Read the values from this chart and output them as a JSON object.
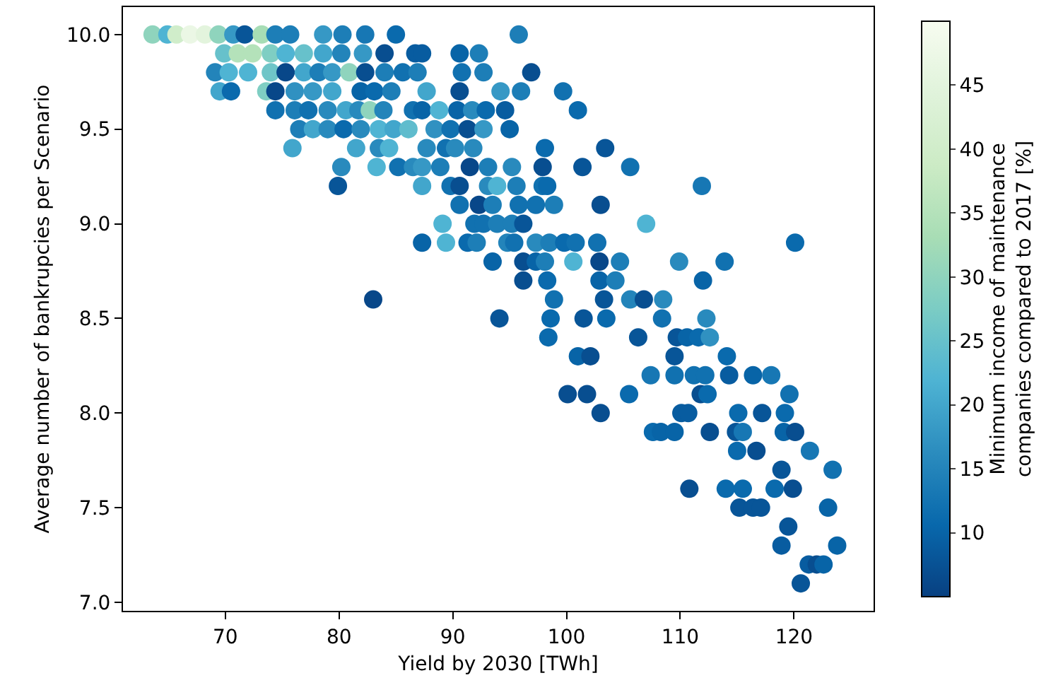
{
  "chart_data": {
    "type": "scatter",
    "xlabel": "Yield by 2030 [TWh]",
    "ylabel": "Average number of bankrupcies per Scenario",
    "clabel": "Minimum income of maintenance\ncompanies compared to 2017 [%]",
    "marker": "circle",
    "grid": false,
    "xlim": [
      61,
      127
    ],
    "xticks": [
      70,
      80,
      90,
      100,
      110,
      120
    ],
    "ylim": [
      6.955,
      10.145
    ],
    "yticks": [
      {
        "value": 7,
        "label": "7.0"
      },
      7.5,
      {
        "value": 8,
        "label": "8.0"
      },
      8.5,
      {
        "value": 9,
        "label": "9.0"
      },
      9.5,
      {
        "value": 10,
        "label": "10.0"
      }
    ],
    "clim": [
      5,
      50
    ],
    "cticks": [
      10,
      15,
      20,
      25,
      30,
      35,
      40,
      45
    ],
    "series": [
      {
        "x": [
          63.6,
          64.9,
          65.7,
          66.9,
          68.2,
          69.4,
          70.7,
          71.7,
          73.2,
          74.4,
          75.7,
          78.6,
          80.3,
          82.3,
          85.0,
          95.8,
          69.9,
          71.1,
          72.4,
          74.0,
          75.3,
          76.9,
          78.6,
          80.2,
          82.1,
          84.0,
          86.7,
          87.3,
          90.6,
          92.3,
          69.1,
          70.3,
          72.0,
          74.0,
          75.3,
          76.9,
          78.2,
          79.4,
          80.9,
          82.3,
          84.0,
          85.6,
          86.9,
          90.8,
          92.7,
          96.9,
          69.5,
          70.5,
          73.6,
          74.4,
          76.1,
          77.7,
          79.4,
          81.9,
          83.1,
          84.6,
          87.7,
          90.6,
          94.2,
          96.0,
          99.7,
          74.4,
          76.1,
          77.3,
          79.0,
          80.6,
          81.7,
          82.7,
          83.9,
          86.5,
          87.3,
          88.8,
          90.4,
          91.7,
          92.9,
          94.6,
          101.0,
          76.5,
          77.7,
          79.0,
          80.4,
          81.9,
          83.5,
          84.8,
          86.1,
          88.4,
          89.8,
          91.3,
          92.7,
          95.0,
          75.9,
          81.5,
          83.5,
          84.4,
          87.7,
          89.4,
          90.2,
          91.8,
          98.1,
          103.4,
          80.2,
          83.3,
          85.2,
          86.5,
          87.3,
          88.9,
          91.5,
          93.1,
          95.2,
          97.9,
          101.4,
          105.6,
          79.9,
          87.3,
          89.8,
          90.6,
          93.1,
          93.9,
          95.6,
          97.9,
          98.3,
          111.9,
          90.6,
          92.3,
          93.5,
          95.8,
          97.3,
          98.9,
          103.0,
          89.1,
          91.9,
          92.7,
          93.9,
          95.2,
          96.2,
          107.0,
          87.3,
          89.4,
          91.3,
          92.1,
          94.8,
          95.4,
          97.3,
          98.5,
          99.8,
          100.8,
          102.7,
          120.1,
          93.5,
          96.2,
          97.3,
          98.1,
          100.6,
          102.9,
          104.7,
          109.9,
          113.9,
          96.2,
          98.3,
          102.9,
          104.3,
          112.0,
          83.0,
          98.9,
          103.3,
          105.6,
          106.8,
          108.5,
          94.1,
          98.6,
          101.5,
          103.5,
          108.4,
          112.3,
          98.4,
          106.3,
          109.7,
          110.6,
          111.6,
          112.6,
          101.0,
          102.1,
          109.5,
          114.1,
          107.4,
          109.5,
          111.2,
          112.2,
          114.3,
          116.4,
          118.0,
          100.1,
          101.8,
          105.5,
          111.8,
          112.4,
          119.6,
          103.0,
          110.1,
          110.7,
          115.1,
          117.2,
          119.2,
          107.6,
          108.3,
          109.5,
          112.6,
          114.9,
          115.5,
          119.1,
          120.1,
          115.0,
          116.7,
          121.4,
          118.9,
          123.4,
          110.8,
          114.0,
          115.5,
          118.3,
          119.9,
          115.2,
          116.4,
          117.1,
          123.0,
          119.5,
          118.9,
          123.8,
          121.3,
          122.0,
          122.6,
          120.6
        ],
        "values": [
          10,
          10,
          10,
          10,
          10,
          10,
          10,
          10,
          10,
          10,
          10,
          10,
          10,
          10,
          10,
          10,
          9.9,
          9.9,
          9.9,
          9.9,
          9.9,
          9.9,
          9.9,
          9.9,
          9.9,
          9.9,
          9.9,
          9.9,
          9.9,
          9.9,
          9.8,
          9.8,
          9.8,
          9.8,
          9.8,
          9.8,
          9.8,
          9.8,
          9.8,
          9.8,
          9.8,
          9.8,
          9.8,
          9.8,
          9.8,
          9.8,
          9.7,
          9.7,
          9.7,
          9.7,
          9.7,
          9.7,
          9.7,
          9.7,
          9.7,
          9.7,
          9.7,
          9.7,
          9.7,
          9.7,
          9.7,
          9.6,
          9.6,
          9.6,
          9.6,
          9.6,
          9.6,
          9.6,
          9.6,
          9.6,
          9.6,
          9.6,
          9.6,
          9.6,
          9.6,
          9.6,
          9.6,
          9.5,
          9.5,
          9.5,
          9.5,
          9.5,
          9.5,
          9.5,
          9.5,
          9.5,
          9.5,
          9.5,
          9.5,
          9.5,
          9.4,
          9.4,
          9.4,
          9.4,
          9.4,
          9.4,
          9.4,
          9.4,
          9.4,
          9.4,
          9.3,
          9.3,
          9.3,
          9.3,
          9.3,
          9.3,
          9.3,
          9.3,
          9.3,
          9.3,
          9.3,
          9.3,
          9.2,
          9.2,
          9.2,
          9.2,
          9.2,
          9.2,
          9.2,
          9.2,
          9.2,
          9.2,
          9.1,
          9.1,
          9.1,
          9.1,
          9.1,
          9.1,
          9.1,
          9.0,
          9.0,
          9.0,
          9.0,
          9.0,
          9.0,
          9.0,
          8.9,
          8.9,
          8.9,
          8.9,
          8.9,
          8.9,
          8.9,
          8.9,
          8.9,
          8.9,
          8.9,
          8.9,
          8.8,
          8.8,
          8.8,
          8.8,
          8.8,
          8.8,
          8.8,
          8.8,
          8.8,
          8.7,
          8.7,
          8.7,
          8.7,
          8.7,
          8.6,
          8.6,
          8.6,
          8.6,
          8.6,
          8.6,
          8.5,
          8.5,
          8.5,
          8.5,
          8.5,
          8.5,
          8.4,
          8.4,
          8.4,
          8.4,
          8.4,
          8.4,
          8.3,
          8.3,
          8.3,
          8.3,
          8.2,
          8.2,
          8.2,
          8.2,
          8.2,
          8.2,
          8.2,
          8.1,
          8.1,
          8.1,
          8.1,
          8.1,
          8.1,
          8.0,
          8.0,
          8.0,
          8.0,
          8.0,
          8.0,
          7.9,
          7.9,
          7.9,
          7.9,
          7.9,
          7.9,
          7.9,
          7.9,
          7.8,
          7.8,
          7.8,
          7.7,
          7.7,
          7.6,
          7.6,
          7.6,
          7.6,
          7.6,
          7.5,
          7.5,
          7.5,
          7.5,
          7.4,
          7.3,
          7.3,
          7.2,
          7.2,
          7.2,
          7.1
        ],
        "cvalues": [
          30,
          22,
          40,
          47,
          45,
          30,
          18,
          8,
          33,
          14,
          14,
          18,
          14,
          13,
          11,
          14,
          25,
          35,
          35,
          28,
          22,
          25,
          20,
          15,
          18,
          7,
          9,
          9,
          10,
          14,
          15,
          22,
          22,
          26,
          6,
          20,
          14,
          18,
          30,
          7,
          14,
          12,
          14,
          12,
          14,
          7,
          20,
          11,
          28,
          6,
          17,
          18,
          20,
          10,
          11,
          14,
          20,
          7,
          18,
          14,
          12,
          12,
          14,
          12,
          16,
          20,
          16,
          30,
          15,
          12,
          10,
          22,
          10,
          16,
          11,
          9,
          11,
          14,
          20,
          16,
          11,
          16,
          22,
          20,
          24,
          17,
          12,
          7,
          18,
          10,
          20,
          20,
          16,
          22,
          16,
          12,
          16,
          16,
          11,
          8,
          16,
          22,
          12,
          16,
          18,
          14,
          6,
          14,
          16,
          7,
          8,
          12,
          8,
          20,
          12,
          7,
          16,
          22,
          14,
          12,
          11,
          13,
          12,
          6,
          14,
          12,
          12,
          14,
          7,
          22,
          12,
          12,
          14,
          14,
          8,
          22,
          10,
          22,
          11,
          14,
          15,
          12,
          16,
          14,
          11,
          12,
          12,
          11,
          10,
          7,
          10,
          14,
          22,
          6,
          14,
          16,
          12,
          7,
          11,
          10,
          14,
          10,
          6,
          12,
          8,
          15,
          7,
          16,
          8,
          11,
          8,
          11,
          12,
          16,
          11,
          8,
          8,
          10,
          11,
          17,
          10,
          7,
          8,
          11,
          13,
          12,
          12,
          12,
          9,
          10,
          13,
          7,
          7,
          11,
          7,
          11,
          12,
          7,
          9,
          9,
          11,
          8,
          11,
          11,
          10,
          10,
          7,
          8,
          13,
          10,
          7,
          11,
          7,
          13,
          8,
          12,
          7,
          11,
          11,
          11,
          7,
          8,
          8,
          8,
          10,
          8,
          9,
          10,
          9,
          7,
          10,
          8
        ]
      }
    ]
  }
}
